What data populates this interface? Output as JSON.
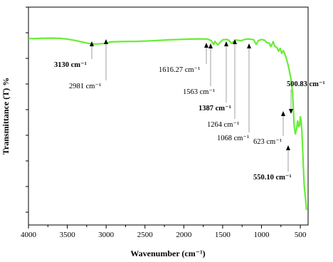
{
  "chart_data": {
    "type": "line",
    "xlabel": "Wavenumber (cm⁻¹)",
    "ylabel": "Transmittance (T) %",
    "xlim": [
      4000,
      400
    ],
    "x_reversed": true,
    "x_ticks": [
      4000,
      3500,
      3000,
      2500,
      2000,
      1500,
      1000,
      500
    ],
    "y_ticks_labeled": false,
    "line_color": "#66ee33",
    "series": [
      {
        "x": [
          4000,
          3900,
          3800,
          3700,
          3600,
          3500,
          3400,
          3300,
          3200,
          3130,
          3050,
          2981,
          2950,
          2800,
          2600,
          2400,
          2200,
          2000,
          1900,
          1800,
          1700,
          1650,
          1616,
          1600,
          1563,
          1500,
          1450,
          1420,
          1387,
          1330,
          1264,
          1200,
          1150,
          1100,
          1068,
          1040,
          1000,
          960,
          930,
          900,
          880,
          850,
          830,
          800,
          780,
          760,
          740,
          720,
          700,
          680,
          660,
          640,
          623,
          600,
          580,
          565,
          550,
          535,
          520,
          510,
          500,
          490,
          480,
          470,
          460,
          450,
          440,
          430,
          420
        ],
        "y": [
          44.2,
          44.1,
          43.7,
          43.5,
          43.8,
          44.9,
          46.8,
          49.2,
          51.4,
          51.8,
          51.3,
          50.4,
          48.9,
          48.4,
          48.1,
          47.2,
          46.0,
          45.2,
          44.9,
          44.6,
          44.8,
          46.8,
          52.5,
          48.2,
          53.0,
          46.0,
          45.3,
          46.5,
          50.8,
          46.2,
          47.1,
          45.0,
          44.9,
          45.8,
          52.3,
          47.0,
          45.5,
          46.5,
          50.0,
          50.5,
          55.5,
          48.5,
          54.8,
          57.0,
          61.8,
          58.0,
          65.0,
          61.0,
          66.0,
          72.0,
          80.0,
          90.0,
          100.0,
          120.0,
          165.0,
          178.0,
          172.0,
          160.0,
          168.0,
          166.0,
          154.0,
          160.0,
          175.0,
          200.0,
          225.0,
          250.0,
          262.0,
          272.0,
          285.0
        ]
      }
    ],
    "annotations": [
      {
        "label": "3130 cm⁻¹",
        "x": 3130,
        "bold": true
      },
      {
        "label": "2981 cm⁻¹",
        "x": 2981,
        "bold": false
      },
      {
        "label": "1616.27 cm⁻¹",
        "x": 1616,
        "bold": false
      },
      {
        "label": "1563 cm⁻¹",
        "x": 1563,
        "bold": false
      },
      {
        "label": "1387 cm⁻¹",
        "x": 1387,
        "bold": true
      },
      {
        "label": "1264 cm⁻¹",
        "x": 1264,
        "bold": false
      },
      {
        "label": "1068 cm⁻¹",
        "x": 1068,
        "bold": false
      },
      {
        "label": "623 cm⁻¹",
        "x": 623,
        "bold": false
      },
      {
        "label": "550.10 cm⁻¹",
        "x": 550,
        "bold": true
      },
      {
        "label": "500.83 cm⁻¹",
        "x": 500,
        "bold": true
      }
    ]
  }
}
